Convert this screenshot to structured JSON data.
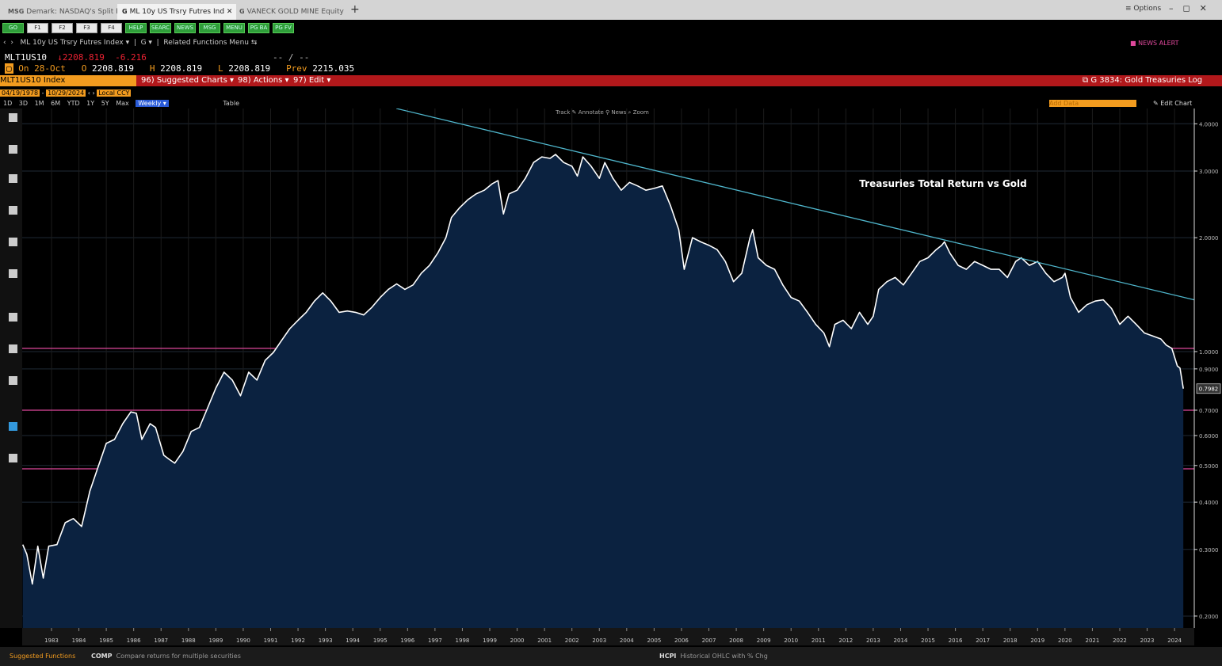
{
  "tabs": [
    {
      "prefix": "MSG",
      "label": "Demark: NASDAQ's Split P..."
    },
    {
      "prefix": "G",
      "label": "ML 10y US Trsry Futres Ind"
    },
    {
      "prefix": "G",
      "label": "VANECK GOLD MINE Equity"
    }
  ],
  "window_options": "Options",
  "function_keys": [
    "GO",
    "F1",
    "F2",
    "F3",
    "F4",
    "HELP",
    "SEARC",
    "NEWS",
    "MSG",
    "MENU",
    "PG BA",
    "PG FV"
  ],
  "nav": {
    "security": "ML 10y US Trsry Futres Index",
    "function": "G",
    "related": "Related Functions Menu",
    "news_alert": "NEWS ALERT"
  },
  "quote": {
    "ticker": "MLT1US10",
    "last": 2208.819,
    "change": -6.216,
    "bid_ask": "-- / --",
    "date_label": "On 28-Oct",
    "open_label": "O",
    "open": 2208.819,
    "high_label": "H",
    "high": 2208.819,
    "low_label": "L",
    "low": 2208.819,
    "prev_label": "Prev",
    "prev": 2215.035
  },
  "menu_bar": {
    "security": "MLT1US10 Index",
    "suggested": "Suggested Charts",
    "actions": "Actions",
    "edit": "Edit",
    "chart_name": "G 3834: Gold Treasuries Log"
  },
  "range": {
    "start": "04/19/1978",
    "end": "10/29/2024",
    "currency": "Local CCY"
  },
  "periods": [
    "1D",
    "3D",
    "1M",
    "6M",
    "YTD",
    "1Y",
    "5Y",
    "Max"
  ],
  "frequency": "Weekly",
  "table": "Table",
  "add_data": "Add Data",
  "edit_chart": "Edit Chart",
  "chart_tools": [
    "Track",
    "Annotate",
    "News",
    "Zoom"
  ],
  "chart_data": {
    "type": "line",
    "log_scale": true,
    "grid": true,
    "annotation": "Treasuries Total Return vs Gold",
    "xlim": [
      1982.43,
      2025.22
    ],
    "ylim": [
      0.186,
      4.39
    ],
    "xticks": [
      {
        "value": 1983.5,
        "label": "1983"
      },
      {
        "value": 1984.5,
        "label": "1984"
      },
      {
        "value": 1985.5,
        "label": "1985"
      },
      {
        "value": 1986.5,
        "label": "1986"
      },
      {
        "value": 1987.5,
        "label": "1987"
      },
      {
        "value": 1988.5,
        "label": "1988"
      },
      {
        "value": 1989.5,
        "label": "1989"
      },
      {
        "value": 1990.5,
        "label": "1990"
      },
      {
        "value": 1991.5,
        "label": "1991"
      },
      {
        "value": 1992.5,
        "label": "1992"
      },
      {
        "value": 1993.5,
        "label": "1993"
      },
      {
        "value": 1994.5,
        "label": "1994"
      },
      {
        "value": 1995.5,
        "label": "1995"
      },
      {
        "value": 1996.5,
        "label": "1996"
      },
      {
        "value": 1997.5,
        "label": "1997"
      },
      {
        "value": 1998.5,
        "label": "1998"
      },
      {
        "value": 1999.5,
        "label": "1999"
      },
      {
        "value": 2000.5,
        "label": "2000"
      },
      {
        "value": 2001.5,
        "label": "2001"
      },
      {
        "value": 2002.5,
        "label": "2002"
      },
      {
        "value": 2003.5,
        "label": "2003"
      },
      {
        "value": 2004.5,
        "label": "2004"
      },
      {
        "value": 2005.5,
        "label": "2005"
      },
      {
        "value": 2006.5,
        "label": "2006"
      },
      {
        "value": 2007.5,
        "label": "2007"
      },
      {
        "value": 2008.5,
        "label": "2008"
      },
      {
        "value": 2009.5,
        "label": "2009"
      },
      {
        "value": 2010.5,
        "label": "2010"
      },
      {
        "value": 2011.5,
        "label": "2011"
      },
      {
        "value": 2012.5,
        "label": "2012"
      },
      {
        "value": 2013.5,
        "label": "2013"
      },
      {
        "value": 2014.5,
        "label": "2014"
      },
      {
        "value": 2015.5,
        "label": "2015"
      },
      {
        "value": 2016.5,
        "label": "2016"
      },
      {
        "value": 2017.5,
        "label": "2017"
      },
      {
        "value": 2018.5,
        "label": "2018"
      },
      {
        "value": 2019.5,
        "label": "2019"
      },
      {
        "value": 2020.5,
        "label": "2020"
      },
      {
        "value": 2021.5,
        "label": "2021"
      },
      {
        "value": 2022.5,
        "label": "2022"
      },
      {
        "value": 2023.5,
        "label": "2023"
      },
      {
        "value": 2024.5,
        "label": "2024"
      }
    ],
    "yticks": [
      {
        "value": 0.2,
        "label": "0.2000"
      },
      {
        "value": 0.3,
        "label": "0.3000"
      },
      {
        "value": 0.4,
        "label": "0.4000"
      },
      {
        "value": 0.5,
        "label": "0.5000"
      },
      {
        "value": 0.6,
        "label": "0.6000"
      },
      {
        "value": 0.7,
        "label": "0.7000"
      },
      {
        "value": 0.9,
        "label": "0.9000"
      },
      {
        "value": 1,
        "label": "1.0000"
      },
      {
        "value": 2,
        "label": "2.0000"
      },
      {
        "value": 3,
        "label": "3.0000"
      },
      {
        "value": 4,
        "label": "4.0000"
      }
    ],
    "series": [
      {
        "color": "#ffffff",
        "fill": "#0b2240",
        "x": [
          1982.45,
          1982.6,
          1982.8,
          1983.0,
          1983.2,
          1983.4,
          1983.7,
          1984.0,
          1984.3,
          1984.6,
          1984.9,
          1985.2,
          1985.5,
          1985.8,
          1986.1,
          1986.4,
          1986.6,
          1986.8,
          1987.1,
          1987.3,
          1987.6,
          1987.8,
          1988.0,
          1988.3,
          1988.6,
          1988.9,
          1989.2,
          1989.5,
          1989.8,
          1990.1,
          1990.4,
          1990.7,
          1991.0,
          1991.3,
          1991.6,
          1991.9,
          1992.2,
          1992.5,
          1992.8,
          1993.1,
          1993.4,
          1993.7,
          1994.0,
          1994.3,
          1994.6,
          1994.9,
          1995.2,
          1995.5,
          1995.8,
          1996.1,
          1996.4,
          1996.7,
          1997.0,
          1997.3,
          1997.6,
          1997.9,
          1998.1,
          1998.4,
          1998.7,
          1999.0,
          1999.3,
          1999.6,
          1999.8,
          2000.0,
          2000.2,
          2000.5,
          2000.8,
          2001.1,
          2001.4,
          2001.7,
          2001.9,
          2002.2,
          2002.5,
          2002.7,
          2002.9,
          2003.2,
          2003.5,
          2003.7,
          2004.0,
          2004.3,
          2004.6,
          2004.9,
          2005.2,
          2005.5,
          2005.8,
          2006.1,
          2006.4,
          2006.6,
          2006.9,
          2007.2,
          2007.5,
          2007.8,
          2008.1,
          2008.4,
          2008.7,
          2009.0,
          2009.1,
          2009.3,
          2009.6,
          2009.9,
          2010.2,
          2010.5,
          2010.8,
          2011.1,
          2011.4,
          2011.7,
          2011.9,
          2012.1,
          2012.4,
          2012.7,
          2013.0,
          2013.3,
          2013.5,
          2013.7,
          2014.0,
          2014.3,
          2014.6,
          2014.9,
          2015.2,
          2015.5,
          2015.8,
          2016.0,
          2016.1,
          2016.3,
          2016.6,
          2016.9,
          2017.2,
          2017.5,
          2017.8,
          2018.1,
          2018.4,
          2018.7,
          2018.9,
          2019.2,
          2019.5,
          2019.8,
          2020.1,
          2020.4,
          2020.5,
          2020.7,
          2021.0,
          2021.3,
          2021.6,
          2021.9,
          2022.2,
          2022.5,
          2022.8,
          2023.1,
          2023.4,
          2023.7,
          2024.0,
          2024.2,
          2024.4,
          2024.6,
          2024.7,
          2024.82
        ],
        "values": [
          0.309,
          0.291,
          0.243,
          0.306,
          0.252,
          0.306,
          0.309,
          0.353,
          0.362,
          0.345,
          0.428,
          0.495,
          0.572,
          0.586,
          0.645,
          0.693,
          0.687,
          0.586,
          0.645,
          0.63,
          0.532,
          0.519,
          0.507,
          0.545,
          0.615,
          0.63,
          0.71,
          0.801,
          0.882,
          0.841,
          0.764,
          0.882,
          0.841,
          0.948,
          0.995,
          1.07,
          1.15,
          1.21,
          1.27,
          1.36,
          1.43,
          1.36,
          1.27,
          1.28,
          1.27,
          1.25,
          1.31,
          1.39,
          1.46,
          1.51,
          1.46,
          1.5,
          1.61,
          1.69,
          1.82,
          2.0,
          2.26,
          2.4,
          2.52,
          2.61,
          2.67,
          2.78,
          2.83,
          2.31,
          2.61,
          2.67,
          2.87,
          3.16,
          3.27,
          3.24,
          3.32,
          3.16,
          3.09,
          2.91,
          3.27,
          3.09,
          2.87,
          3.16,
          2.87,
          2.67,
          2.8,
          2.74,
          2.67,
          2.7,
          2.74,
          2.43,
          2.1,
          1.65,
          2.0,
          1.95,
          1.91,
          1.86,
          1.73,
          1.53,
          1.61,
          2.0,
          2.1,
          1.77,
          1.69,
          1.65,
          1.5,
          1.39,
          1.36,
          1.27,
          1.18,
          1.12,
          1.03,
          1.18,
          1.21,
          1.15,
          1.27,
          1.18,
          1.24,
          1.46,
          1.53,
          1.57,
          1.5,
          1.61,
          1.73,
          1.77,
          1.86,
          1.91,
          1.95,
          1.82,
          1.69,
          1.65,
          1.73,
          1.69,
          1.65,
          1.65,
          1.57,
          1.73,
          1.77,
          1.69,
          1.73,
          1.61,
          1.53,
          1.57,
          1.61,
          1.39,
          1.27,
          1.33,
          1.36,
          1.37,
          1.3,
          1.18,
          1.24,
          1.18,
          1.12,
          1.1,
          1.08,
          1.04,
          1.02,
          0.917,
          0.904,
          0.7982
        ],
        "last_label": "0.7982"
      }
    ],
    "trendline": {
      "color": "#4fb6cc",
      "x": [
        1996.09,
        2025.22
      ],
      "values": [
        4.39,
        1.37
      ]
    },
    "reference_lines": {
      "color": "#e0489c",
      "values": [
        1.02,
        0.7,
        0.49
      ]
    }
  },
  "footer": {
    "suggested": "Suggested Functions",
    "items": [
      {
        "code": "COMP",
        "desc": "Compare returns for multiple securities"
      },
      {
        "code": "HCPI",
        "desc": "Historical OHLC with % Chg"
      }
    ]
  }
}
